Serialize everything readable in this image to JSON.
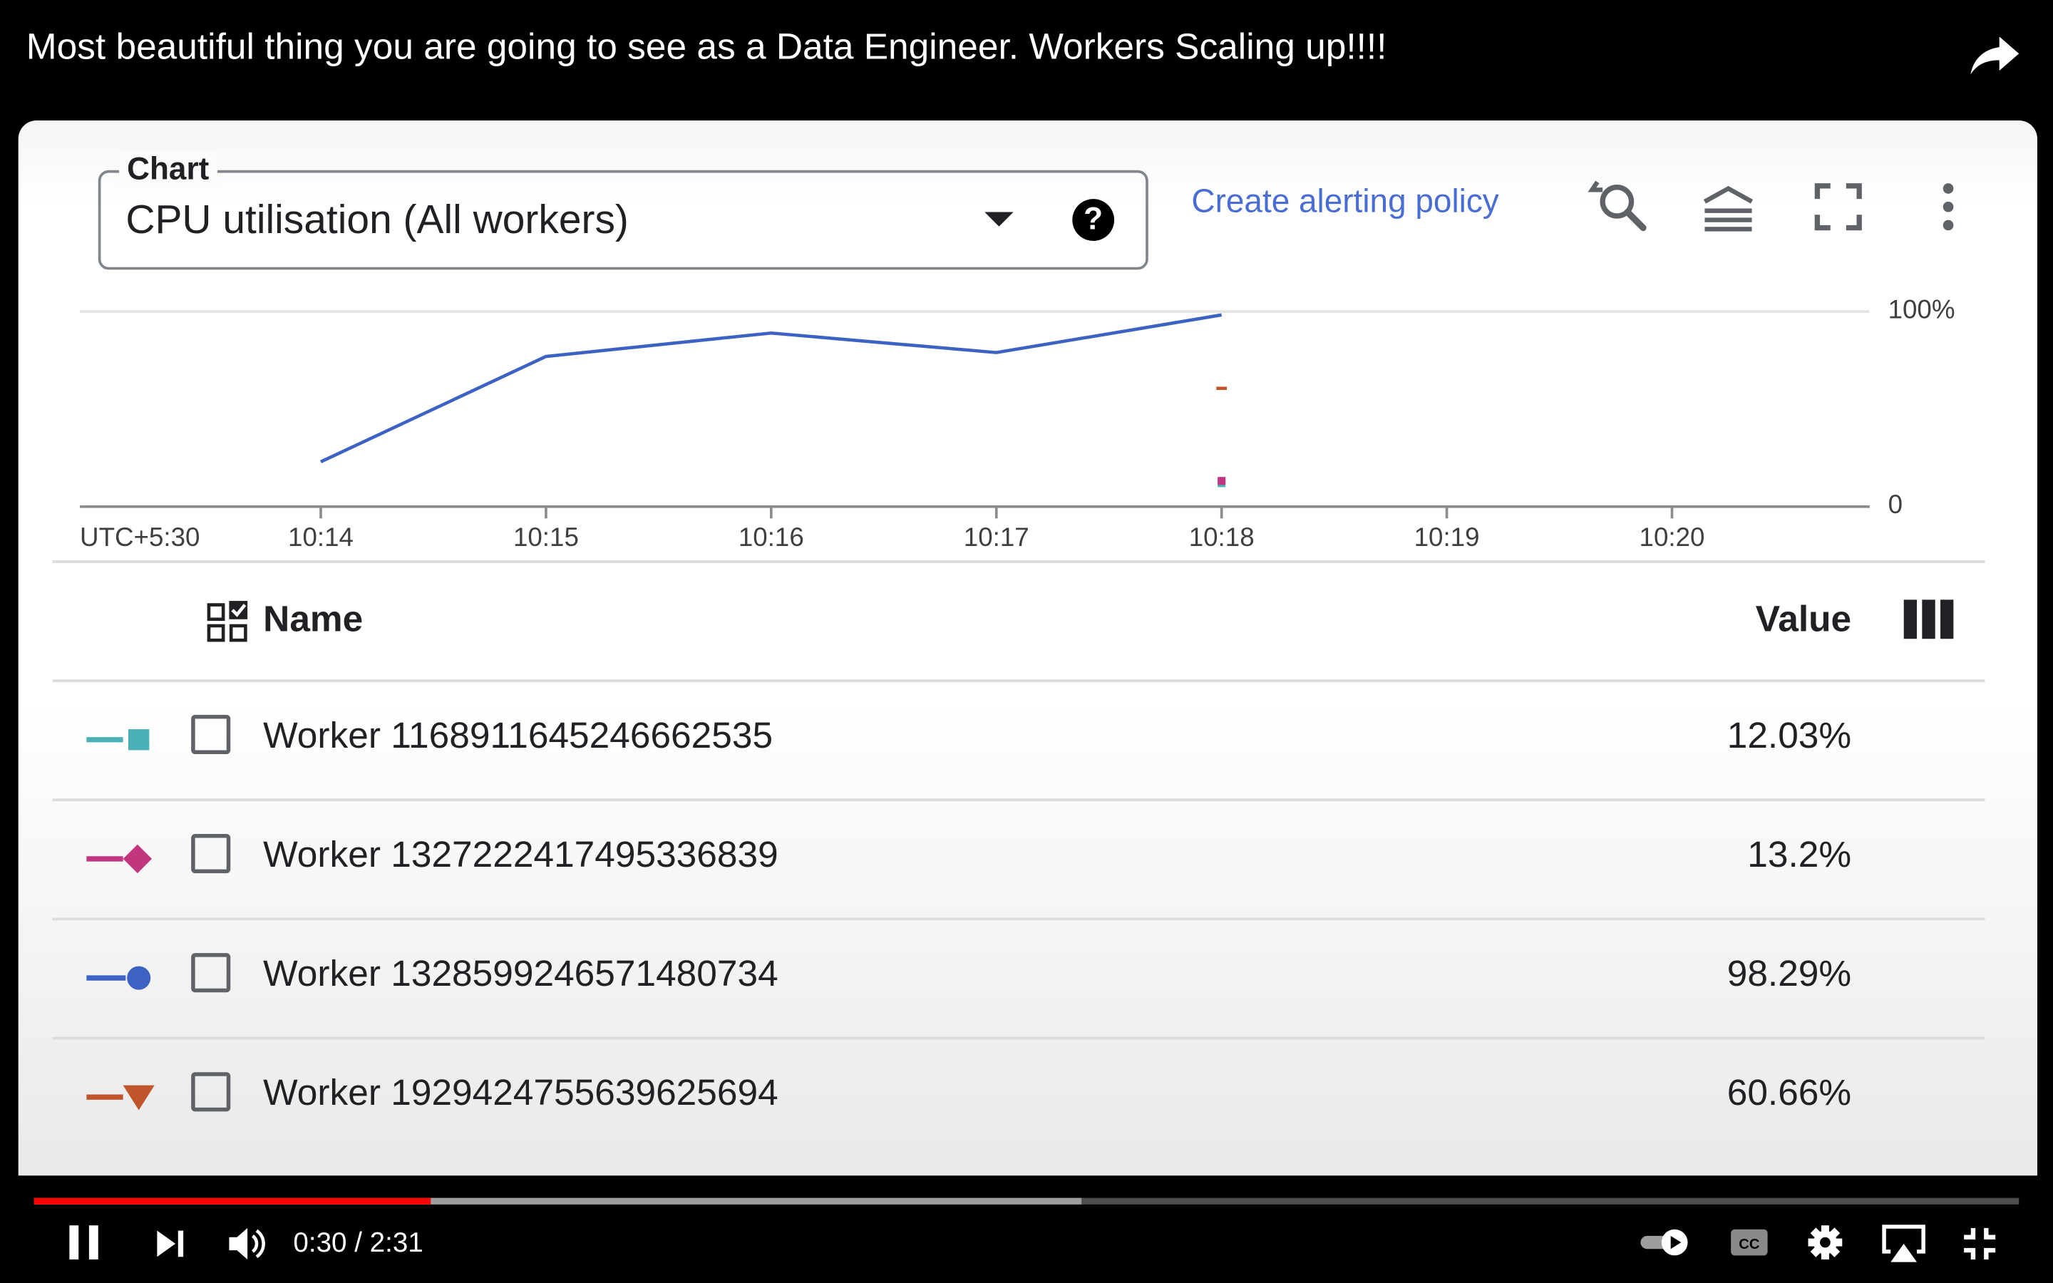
{
  "video": {
    "title": "Most beautiful thing you are going to see as a Data Engineer. Workers Scaling up!!!!",
    "time_current": "0:30",
    "time_total": "2:31",
    "time_display": "0:30 / 2:31",
    "played_fraction": 0.2,
    "buffered_fraction": 0.528
  },
  "chart_panel": {
    "select_label": "Chart",
    "select_value": "CPU utilisation (All workers)",
    "alert_link": "Create alerting policy",
    "accent_color": "#4a6dd4",
    "toolbar_icons": [
      "zoom-reset-icon",
      "legend-toggle-icon",
      "fullscreen-icon",
      "more-vert-icon"
    ]
  },
  "chart_data": {
    "type": "line",
    "x_tick_labels": [
      "10:14",
      "10:15",
      "10:16",
      "10:17",
      "10:18",
      "10:19",
      "10:20"
    ],
    "timezone_label": "UTC+5:30",
    "y_tick_labels": [
      "100%",
      "0"
    ],
    "ylim": [
      0,
      100
    ],
    "series": [
      {
        "name": "Worker 1328599246571480734",
        "color": "#3c62c4",
        "marker": "circle",
        "x": [
          "10:14",
          "10:15",
          "10:16",
          "10:17",
          "10:18"
        ],
        "y": [
          23,
          77,
          89,
          79,
          98.29
        ]
      },
      {
        "name": "Worker 1929424755639625694",
        "color": "#c0542b",
        "marker": "triangle",
        "x": [
          "10:18"
        ],
        "y": [
          60.66
        ]
      },
      {
        "name": "Worker 1168911645246662535",
        "color": "#4bb0b8",
        "marker": "square",
        "x": [
          "10:18"
        ],
        "y": [
          12.03
        ]
      },
      {
        "name": "Worker 1327222417495336839",
        "color": "#c2357f",
        "marker": "diamond",
        "x": [
          "10:18"
        ],
        "y": [
          13.2
        ]
      }
    ]
  },
  "table": {
    "col_name": "Name",
    "col_value": "Value",
    "rows": [
      {
        "name": "Worker 1168911645246662535",
        "value": "12.03%",
        "color": "#4bb0b8",
        "marker": "square"
      },
      {
        "name": "Worker 1327222417495336839",
        "value": "13.2%",
        "color": "#c2357f",
        "marker": "diamond"
      },
      {
        "name": "Worker 1328599246571480734",
        "value": "98.29%",
        "color": "#3c62c4",
        "marker": "circle"
      },
      {
        "name": "Worker 1929424755639625694",
        "value": "60.66%",
        "color": "#c0542b",
        "marker": "triangle"
      }
    ]
  },
  "player_icons": [
    "pause-icon",
    "next-icon",
    "volume-icon",
    "autoplay-toggle-icon",
    "captions-icon",
    "settings-icon",
    "airplay-icon",
    "exit-fullscreen-icon"
  ]
}
